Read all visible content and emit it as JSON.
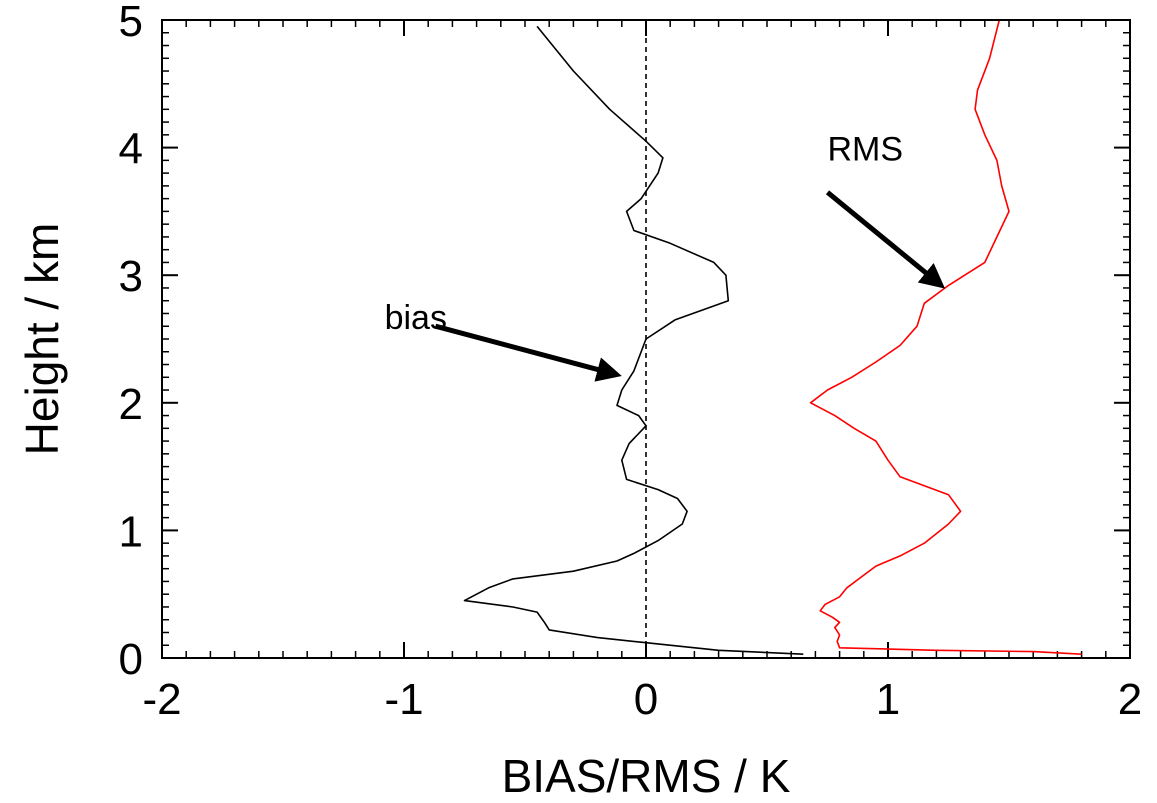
{
  "chart_data": {
    "type": "line",
    "xlabel": "BIAS/RMS / K",
    "ylabel": "Height / km",
    "xlim": [
      -2,
      2
    ],
    "ylim": [
      0,
      5
    ],
    "xticks": [
      "-2",
      "-1",
      "0",
      "1",
      "2"
    ],
    "yticks": [
      "0",
      "1",
      "2",
      "3",
      "4",
      "5"
    ],
    "x_tick_values": [
      -2,
      -1,
      0,
      1,
      2
    ],
    "y_tick_values": [
      0,
      1,
      2,
      3,
      4,
      5
    ],
    "reference_line": {
      "x": 0,
      "style": "dashed"
    },
    "grid": false,
    "series": [
      {
        "key": "bias",
        "color": "#000000",
        "points": [
          [
            0.65,
            0.03
          ],
          [
            0.3,
            0.06
          ],
          [
            0.0,
            0.12
          ],
          [
            -0.2,
            0.16
          ],
          [
            -0.4,
            0.22
          ],
          [
            -0.42,
            0.28
          ],
          [
            -0.45,
            0.36
          ],
          [
            -0.55,
            0.4
          ],
          [
            -0.75,
            0.45
          ],
          [
            -0.65,
            0.55
          ],
          [
            -0.55,
            0.62
          ],
          [
            -0.3,
            0.68
          ],
          [
            -0.12,
            0.76
          ],
          [
            -0.05,
            0.82
          ],
          [
            0.05,
            0.92
          ],
          [
            0.15,
            1.05
          ],
          [
            0.17,
            1.15
          ],
          [
            0.13,
            1.25
          ],
          [
            0.05,
            1.32
          ],
          [
            -0.08,
            1.4
          ],
          [
            -0.1,
            1.55
          ],
          [
            -0.07,
            1.68
          ],
          [
            0.0,
            1.82
          ],
          [
            -0.03,
            1.9
          ],
          [
            -0.12,
            1.98
          ],
          [
            -0.1,
            2.1
          ],
          [
            -0.05,
            2.25
          ],
          [
            0.0,
            2.5
          ],
          [
            0.12,
            2.65
          ],
          [
            0.34,
            2.8
          ],
          [
            0.33,
            3.0
          ],
          [
            0.28,
            3.1
          ],
          [
            0.1,
            3.25
          ],
          [
            -0.05,
            3.35
          ],
          [
            -0.08,
            3.5
          ],
          [
            -0.02,
            3.6
          ],
          [
            0.05,
            3.8
          ],
          [
            0.07,
            3.92
          ],
          [
            0.0,
            4.05
          ],
          [
            -0.15,
            4.3
          ],
          [
            -0.3,
            4.6
          ],
          [
            -0.45,
            4.95
          ]
        ]
      },
      {
        "key": "rms",
        "color": "#ff0000",
        "points": [
          [
            1.8,
            0.03
          ],
          [
            1.6,
            0.05
          ],
          [
            1.2,
            0.06
          ],
          [
            0.8,
            0.08
          ],
          [
            0.79,
            0.13
          ],
          [
            0.8,
            0.18
          ],
          [
            0.78,
            0.24
          ],
          [
            0.8,
            0.28
          ],
          [
            0.77,
            0.32
          ],
          [
            0.72,
            0.37
          ],
          [
            0.74,
            0.42
          ],
          [
            0.8,
            0.48
          ],
          [
            0.83,
            0.55
          ],
          [
            0.9,
            0.65
          ],
          [
            0.95,
            0.72
          ],
          [
            1.05,
            0.8
          ],
          [
            1.15,
            0.9
          ],
          [
            1.25,
            1.05
          ],
          [
            1.3,
            1.15
          ],
          [
            1.25,
            1.28
          ],
          [
            1.15,
            1.35
          ],
          [
            1.05,
            1.42
          ],
          [
            1.0,
            1.55
          ],
          [
            0.95,
            1.7
          ],
          [
            0.86,
            1.8
          ],
          [
            0.78,
            1.9
          ],
          [
            0.68,
            2.0
          ],
          [
            0.75,
            2.1
          ],
          [
            0.85,
            2.2
          ],
          [
            0.95,
            2.32
          ],
          [
            1.05,
            2.45
          ],
          [
            1.12,
            2.6
          ],
          [
            1.15,
            2.78
          ],
          [
            1.25,
            2.92
          ],
          [
            1.4,
            3.1
          ],
          [
            1.45,
            3.3
          ],
          [
            1.5,
            3.5
          ],
          [
            1.47,
            3.7
          ],
          [
            1.45,
            3.9
          ],
          [
            1.4,
            4.1
          ],
          [
            1.36,
            4.3
          ],
          [
            1.37,
            4.45
          ],
          [
            1.42,
            4.7
          ],
          [
            1.46,
            5.0
          ]
        ]
      }
    ],
    "annotations": [
      {
        "key": "rms",
        "text": "RMS",
        "label_x": 0.75,
        "label_y": 3.9,
        "tail_x": 0.75,
        "tail_y": 3.65,
        "head_x": 1.22,
        "head_y": 2.92
      },
      {
        "key": "bias",
        "text": "bias",
        "label_x": -1.08,
        "label_y": 2.58,
        "tail_x": -0.87,
        "tail_y": 2.6,
        "head_x": -0.12,
        "head_y": 2.22
      }
    ]
  }
}
